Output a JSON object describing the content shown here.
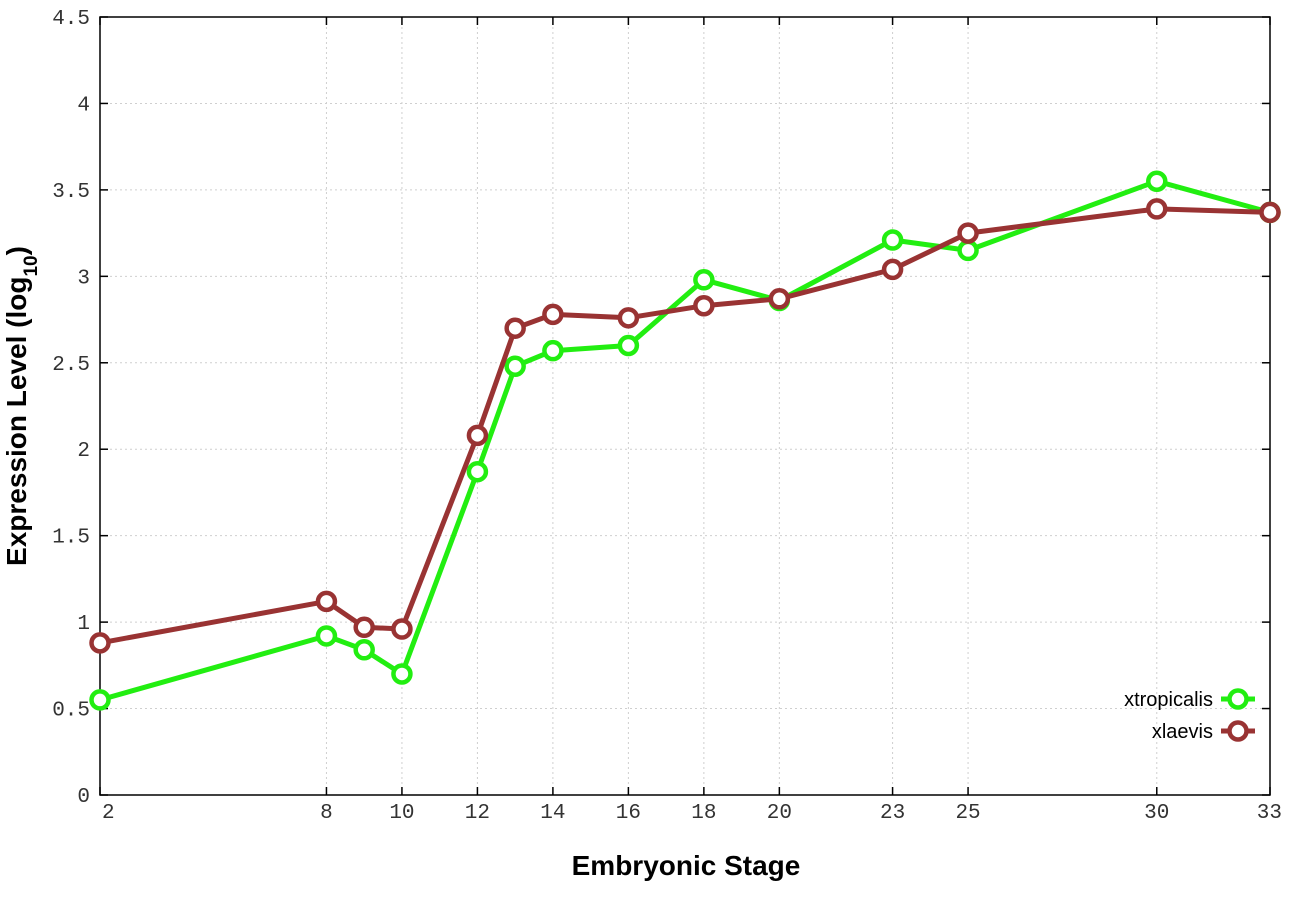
{
  "chart_data": {
    "type": "line",
    "title": "",
    "xlabel": "Embryonic Stage",
    "ylabel": "Expression Level (log",
    "ylabel_subscript": "10",
    "ylabel_suffix": ")",
    "xlim": [
      2,
      33
    ],
    "ylim": [
      0,
      4.5
    ],
    "grid": true,
    "legend_position": "bottom-right",
    "x_ticks": [
      2,
      8,
      10,
      12,
      14,
      16,
      18,
      20,
      23,
      25,
      30,
      33
    ],
    "y_ticks": [
      0,
      0.5,
      1,
      1.5,
      2,
      2.5,
      3,
      3.5,
      4,
      4.5
    ],
    "y_tick_labels": [
      "0",
      "0.5",
      "1",
      "1.5",
      "2",
      "2.5",
      "3",
      "3.5",
      "4",
      "4.5"
    ],
    "series": [
      {
        "name": "xtropicalis",
        "color": "#22ee11",
        "marker": "circle",
        "x": [
          2,
          8,
          9,
          10,
          12,
          13,
          14,
          16,
          18,
          20,
          23,
          25,
          30,
          33
        ],
        "y": [
          0.55,
          0.92,
          0.84,
          0.7,
          1.87,
          2.48,
          2.57,
          2.6,
          2.98,
          2.86,
          3.21,
          3.15,
          3.55,
          3.37
        ]
      },
      {
        "name": "xlaevis",
        "color": "#993333",
        "marker": "circle",
        "x": [
          2,
          8,
          9,
          10,
          12,
          13,
          14,
          16,
          18,
          20,
          23,
          25,
          30,
          33
        ],
        "y": [
          0.88,
          1.12,
          0.97,
          0.96,
          2.08,
          2.7,
          2.78,
          2.76,
          2.83,
          2.87,
          3.04,
          3.25,
          3.39,
          3.37
        ]
      }
    ]
  }
}
